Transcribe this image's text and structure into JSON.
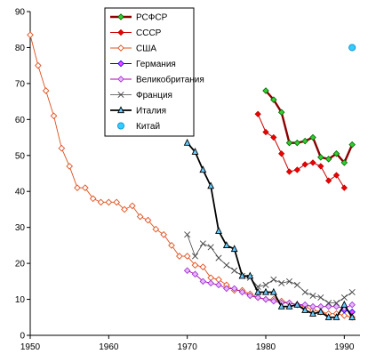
{
  "chart_data": {
    "type": "line",
    "title": "",
    "xlabel": "",
    "ylabel": "",
    "xlim": [
      1950,
      1992
    ],
    "ylim": [
      0,
      90
    ],
    "xticks": [
      "1950",
      "1960",
      "1970",
      "1980",
      "1990"
    ],
    "yticks": [
      "0",
      "10",
      "20",
      "30",
      "40",
      "50",
      "60",
      "70",
      "80",
      "90"
    ],
    "grid": false,
    "legend_position": "top-center",
    "series": [
      {
        "name": "РСФСР",
        "color": "#8b0000",
        "marker": "diamond-green",
        "x": [
          1980,
          1981,
          1982,
          1983,
          1984,
          1985,
          1986,
          1987,
          1988,
          1989,
          1990,
          1991
        ],
        "y": [
          68,
          65.5,
          62,
          53.5,
          53.5,
          54,
          55,
          49.5,
          49,
          50.5,
          48,
          53
        ]
      },
      {
        "name": "СССР",
        "color": "#cc0000",
        "marker": "diamond-red",
        "x": [
          1979,
          1980,
          1981,
          1982,
          1983,
          1984,
          1985,
          1986,
          1987,
          1988,
          1989,
          1990
        ],
        "y": [
          61.5,
          56.5,
          55,
          50.5,
          45.5,
          46,
          47.5,
          48,
          47,
          43,
          44.5,
          41
        ]
      },
      {
        "name": "США",
        "color": "#e0501e",
        "marker": "diamond-open",
        "x": [
          1950,
          1951,
          1952,
          1953,
          1954,
          1955,
          1956,
          1957,
          1958,
          1959,
          1960,
          1961,
          1962,
          1963,
          1964,
          1965,
          1966,
          1967,
          1968,
          1969,
          1970,
          1971,
          1972,
          1973,
          1974,
          1975,
          1976,
          1977,
          1978,
          1979,
          1980,
          1981,
          1982,
          1983,
          1984,
          1985,
          1986,
          1987,
          1988,
          1989,
          1990,
          1991
        ],
        "y": [
          83.5,
          75,
          68,
          61,
          52,
          47,
          41,
          41,
          38,
          37,
          37,
          37,
          35,
          36,
          33,
          32,
          29.5,
          28,
          25,
          22,
          22,
          19.5,
          19,
          16,
          15.5,
          14,
          12.5,
          12.5,
          11.5,
          10.5,
          10,
          10,
          9.5,
          9,
          8.5,
          8,
          7,
          6.5,
          6,
          6,
          5.5,
          5
        ]
      },
      {
        "name": "Германия",
        "color": "#0000ff",
        "marker": "diamond-blue",
        "x": [
          1990,
          1991
        ],
        "y": [
          7,
          6.5
        ]
      },
      {
        "name": "Великобритания",
        "color": "#b000b0",
        "marker": "diamond-violet",
        "x": [
          1970,
          1971,
          1972,
          1973,
          1974,
          1975,
          1976,
          1977,
          1978,
          1979,
          1980,
          1981,
          1982,
          1983,
          1984,
          1985,
          1986,
          1987,
          1988,
          1989,
          1990,
          1991
        ],
        "y": [
          18,
          17,
          15,
          14.5,
          14,
          13,
          13,
          12,
          11,
          10.5,
          10,
          9.5,
          9,
          9,
          8.5,
          8.5,
          8,
          8,
          8,
          8,
          7.5,
          8.5
        ]
      },
      {
        "name": "Франция",
        "color": "#444444",
        "marker": "x",
        "x": [
          1970,
          1971,
          1972,
          1973,
          1974,
          1975,
          1976,
          1977,
          1978,
          1979,
          1980,
          1981,
          1982,
          1983,
          1984,
          1985,
          1986,
          1987,
          1988,
          1989,
          1990,
          1991
        ],
        "y": [
          28,
          22,
          25.5,
          24.5,
          21.5,
          19.5,
          18,
          16.5,
          16,
          13.5,
          14,
          15.5,
          14.5,
          15,
          14,
          12,
          11,
          10.5,
          9,
          9,
          10.5,
          12
        ]
      },
      {
        "name": "Италия",
        "color": "#000000",
        "marker": "triangle",
        "x": [
          1970,
          1971,
          1972,
          1973,
          1974,
          1975,
          1976,
          1977,
          1978,
          1979,
          1980,
          1981,
          1982,
          1983,
          1984,
          1985,
          1986,
          1987,
          1988,
          1989,
          1990,
          1991
        ],
        "y": [
          53.5,
          51,
          46,
          41.5,
          29,
          25,
          24,
          16.5,
          16.5,
          12,
          12,
          12,
          8,
          8,
          8.5,
          7,
          6,
          6.5,
          5,
          5,
          8.5,
          5
        ]
      },
      {
        "name": "Китай",
        "color": "#00c8ff",
        "marker": "circle",
        "x": [
          1991
        ],
        "y": [
          80
        ]
      }
    ]
  }
}
